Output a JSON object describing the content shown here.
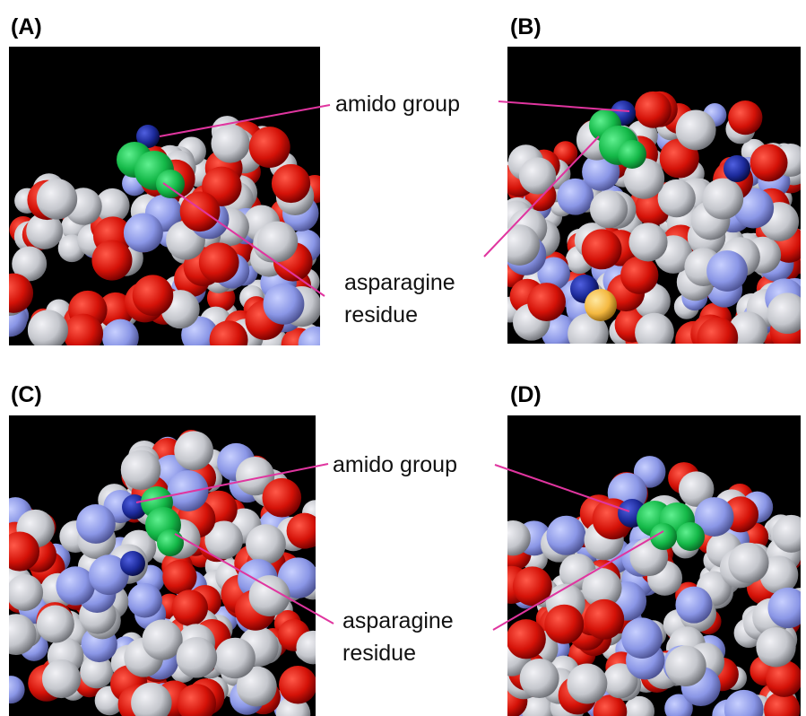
{
  "panels": [
    {
      "label": "(A)"
    },
    {
      "label": "(B)"
    },
    {
      "label": "(C)"
    },
    {
      "label": "(D)"
    }
  ],
  "annotations": [
    {
      "amido": "amido group",
      "residue": [
        "asparagine",
        "residue"
      ]
    },
    {
      "amido": "amido group",
      "residue": [
        "asparagine",
        "residue"
      ]
    }
  ]
}
